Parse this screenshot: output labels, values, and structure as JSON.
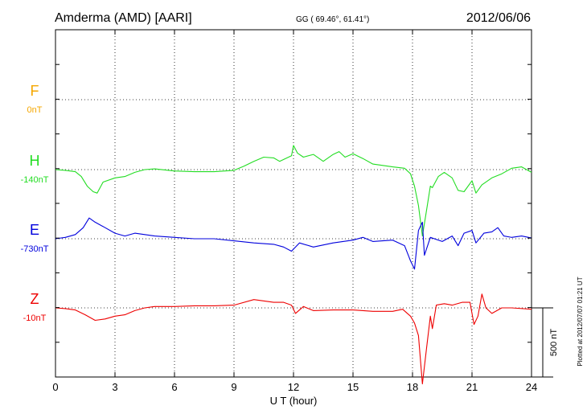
{
  "header": {
    "station": "Amderma (AMD)  [AARI]",
    "coords": "GG ( 69.46°,  61.41°)",
    "date": "2012/06/06"
  },
  "footer": {
    "plotted": "Plotted at 2012/07/07 01:21  UT",
    "scale_label": "500 nT"
  },
  "chart_data": {
    "type": "line",
    "xlabel": "U T (hour)",
    "xlim": [
      0,
      24
    ],
    "xticks": [
      0,
      3,
      6,
      9,
      12,
      15,
      18,
      21,
      24
    ],
    "units": "nT",
    "scale_bar_nT": 500,
    "grid": true,
    "series": [
      {
        "name": "F",
        "baseline_label": "0nT",
        "color": "#f5a700",
        "points": []
      },
      {
        "name": "H",
        "baseline_label": "-140nT",
        "color": "#22dd22",
        "points": [
          [
            0,
            0
          ],
          [
            0.5,
            -5
          ],
          [
            1,
            -15
          ],
          [
            1.3,
            -50
          ],
          [
            1.6,
            -120
          ],
          [
            1.9,
            -160
          ],
          [
            2.1,
            -170
          ],
          [
            2.4,
            -90
          ],
          [
            3,
            -60
          ],
          [
            3.5,
            -50
          ],
          [
            4,
            -20
          ],
          [
            4.5,
            0
          ],
          [
            5,
            5
          ],
          [
            6,
            -10
          ],
          [
            7,
            -15
          ],
          [
            8,
            -15
          ],
          [
            9,
            -5
          ],
          [
            9.5,
            25
          ],
          [
            10,
            60
          ],
          [
            10.5,
            90
          ],
          [
            11,
            85
          ],
          [
            11.3,
            60
          ],
          [
            11.6,
            80
          ],
          [
            11.9,
            100
          ],
          [
            12,
            175
          ],
          [
            12.2,
            120
          ],
          [
            12.5,
            90
          ],
          [
            13,
            110
          ],
          [
            13.5,
            60
          ],
          [
            14,
            110
          ],
          [
            14.3,
            130
          ],
          [
            14.6,
            90
          ],
          [
            15,
            115
          ],
          [
            15.5,
            80
          ],
          [
            16,
            40
          ],
          [
            17,
            20
          ],
          [
            17.6,
            10
          ],
          [
            17.9,
            -30
          ],
          [
            18.1,
            -120
          ],
          [
            18.3,
            -260
          ],
          [
            18.5,
            -480
          ],
          [
            18.7,
            -300
          ],
          [
            18.9,
            -120
          ],
          [
            19,
            -130
          ],
          [
            19.3,
            -50
          ],
          [
            19.6,
            -20
          ],
          [
            20,
            -60
          ],
          [
            20.3,
            -150
          ],
          [
            20.6,
            -160
          ],
          [
            21,
            -80
          ],
          [
            21.2,
            -170
          ],
          [
            21.5,
            -110
          ],
          [
            22,
            -60
          ],
          [
            22.5,
            -30
          ],
          [
            23,
            10
          ],
          [
            23.5,
            20
          ],
          [
            24,
            -20
          ]
        ]
      },
      {
        "name": "E",
        "baseline_label": "-730nT",
        "color": "#0000dd",
        "points": [
          [
            0,
            0
          ],
          [
            0.5,
            10
          ],
          [
            1,
            30
          ],
          [
            1.4,
            80
          ],
          [
            1.7,
            150
          ],
          [
            2,
            120
          ],
          [
            2.5,
            80
          ],
          [
            3,
            40
          ],
          [
            3.5,
            20
          ],
          [
            4,
            40
          ],
          [
            4.5,
            30
          ],
          [
            5,
            20
          ],
          [
            6,
            10
          ],
          [
            7,
            0
          ],
          [
            8,
            0
          ],
          [
            9,
            -15
          ],
          [
            10,
            -30
          ],
          [
            11,
            -40
          ],
          [
            11.5,
            -60
          ],
          [
            11.9,
            -90
          ],
          [
            12.3,
            -30
          ],
          [
            13,
            -60
          ],
          [
            14,
            -30
          ],
          [
            15,
            -10
          ],
          [
            15.5,
            10
          ],
          [
            16,
            -20
          ],
          [
            17,
            -10
          ],
          [
            17.6,
            -50
          ],
          [
            17.9,
            -160
          ],
          [
            18.1,
            -220
          ],
          [
            18.3,
            60
          ],
          [
            18.5,
            120
          ],
          [
            18.6,
            -120
          ],
          [
            18.9,
            10
          ],
          [
            19.5,
            -20
          ],
          [
            20,
            20
          ],
          [
            20.3,
            -50
          ],
          [
            20.6,
            40
          ],
          [
            21,
            60
          ],
          [
            21.2,
            -30
          ],
          [
            21.6,
            40
          ],
          [
            22,
            50
          ],
          [
            22.3,
            80
          ],
          [
            22.6,
            20
          ],
          [
            23,
            10
          ],
          [
            23.5,
            20
          ],
          [
            24,
            5
          ]
        ]
      },
      {
        "name": "Z",
        "baseline_label": "-10nT",
        "color": "#ee0000",
        "points": [
          [
            0,
            0
          ],
          [
            0.5,
            -5
          ],
          [
            1,
            -15
          ],
          [
            1.5,
            -50
          ],
          [
            2,
            -90
          ],
          [
            2.5,
            -80
          ],
          [
            3,
            -60
          ],
          [
            3.5,
            -50
          ],
          [
            4,
            -20
          ],
          [
            4.5,
            0
          ],
          [
            5,
            10
          ],
          [
            6,
            10
          ],
          [
            7,
            15
          ],
          [
            8,
            15
          ],
          [
            9,
            20
          ],
          [
            10,
            60
          ],
          [
            11,
            40
          ],
          [
            11.5,
            40
          ],
          [
            11.9,
            20
          ],
          [
            12.1,
            -40
          ],
          [
            12.5,
            10
          ],
          [
            13,
            -20
          ],
          [
            14,
            -15
          ],
          [
            15,
            -15
          ],
          [
            16,
            -25
          ],
          [
            17,
            -25
          ],
          [
            17.5,
            -10
          ],
          [
            17.9,
            -60
          ],
          [
            18.1,
            -110
          ],
          [
            18.3,
            -200
          ],
          [
            18.5,
            -550
          ],
          [
            18.7,
            -300
          ],
          [
            18.9,
            -60
          ],
          [
            19,
            -150
          ],
          [
            19.2,
            20
          ],
          [
            19.6,
            30
          ],
          [
            20,
            20
          ],
          [
            20.5,
            40
          ],
          [
            20.9,
            40
          ],
          [
            21.1,
            -120
          ],
          [
            21.3,
            -60
          ],
          [
            21.5,
            100
          ],
          [
            21.7,
            0
          ],
          [
            22,
            -40
          ],
          [
            22.5,
            0
          ],
          [
            23,
            0
          ],
          [
            24,
            -10
          ]
        ]
      }
    ]
  }
}
